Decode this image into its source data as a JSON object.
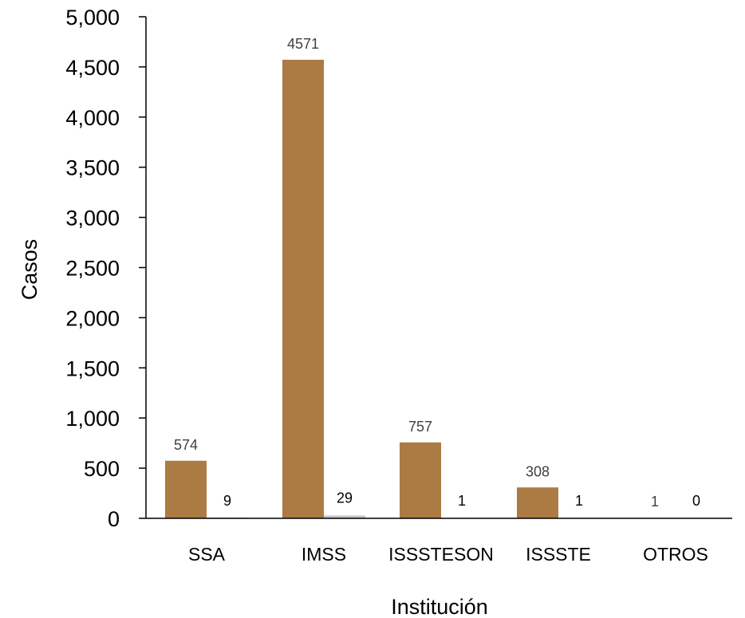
{
  "chart_data": {
    "type": "bar",
    "title": "",
    "xlabel": "Institución",
    "ylabel": "Casos",
    "categories": [
      "SSA",
      "IMSS",
      "ISSSTESON",
      "ISSSTE",
      "OTROS"
    ],
    "series": [
      {
        "values": [
          574,
          4571,
          757,
          308,
          1
        ],
        "data_labels": [
          "574",
          "4571",
          "757",
          "308",
          "1"
        ],
        "color": "#AB7B43"
      },
      {
        "values": [
          9,
          29,
          1,
          1,
          0
        ],
        "data_labels": [
          "9",
          "29",
          "1",
          "1",
          "0"
        ],
        "color": "#C8C8C8"
      }
    ],
    "ylim": [
      0,
      5000
    ],
    "yticks": [
      0,
      500,
      1000,
      1500,
      2000,
      2500,
      3000,
      3500,
      4000,
      4500,
      5000
    ],
    "ytick_labels": [
      "0",
      "500",
      "1,000",
      "1,500",
      "2,000",
      "2,500",
      "3,000",
      "3,500",
      "4,000",
      "4,500",
      "5,000"
    ],
    "grid": false,
    "legend": "none",
    "axis_color": "#000000"
  }
}
